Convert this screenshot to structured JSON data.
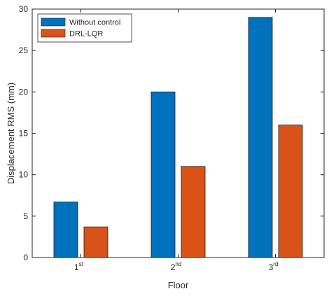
{
  "chart_data": {
    "type": "bar",
    "title": "",
    "xlabel": "Floor",
    "ylabel": "Displacement RMS (mm)",
    "categories": [
      {
        "base": "1",
        "sup": "st"
      },
      {
        "base": "2",
        "sup": "nd"
      },
      {
        "base": "3",
        "sup": "rd"
      }
    ],
    "series": [
      {
        "name": "Without control",
        "color": "#0072BD",
        "values": [
          6.7,
          20,
          29
        ]
      },
      {
        "name": "DRL-LQR",
        "color": "#D95319",
        "values": [
          3.7,
          11,
          16
        ]
      }
    ],
    "ylim": [
      0,
      30
    ],
    "yticks": [
      0,
      5,
      10,
      15,
      20,
      25,
      30
    ],
    "grid": false,
    "legend_position": "top-left"
  }
}
